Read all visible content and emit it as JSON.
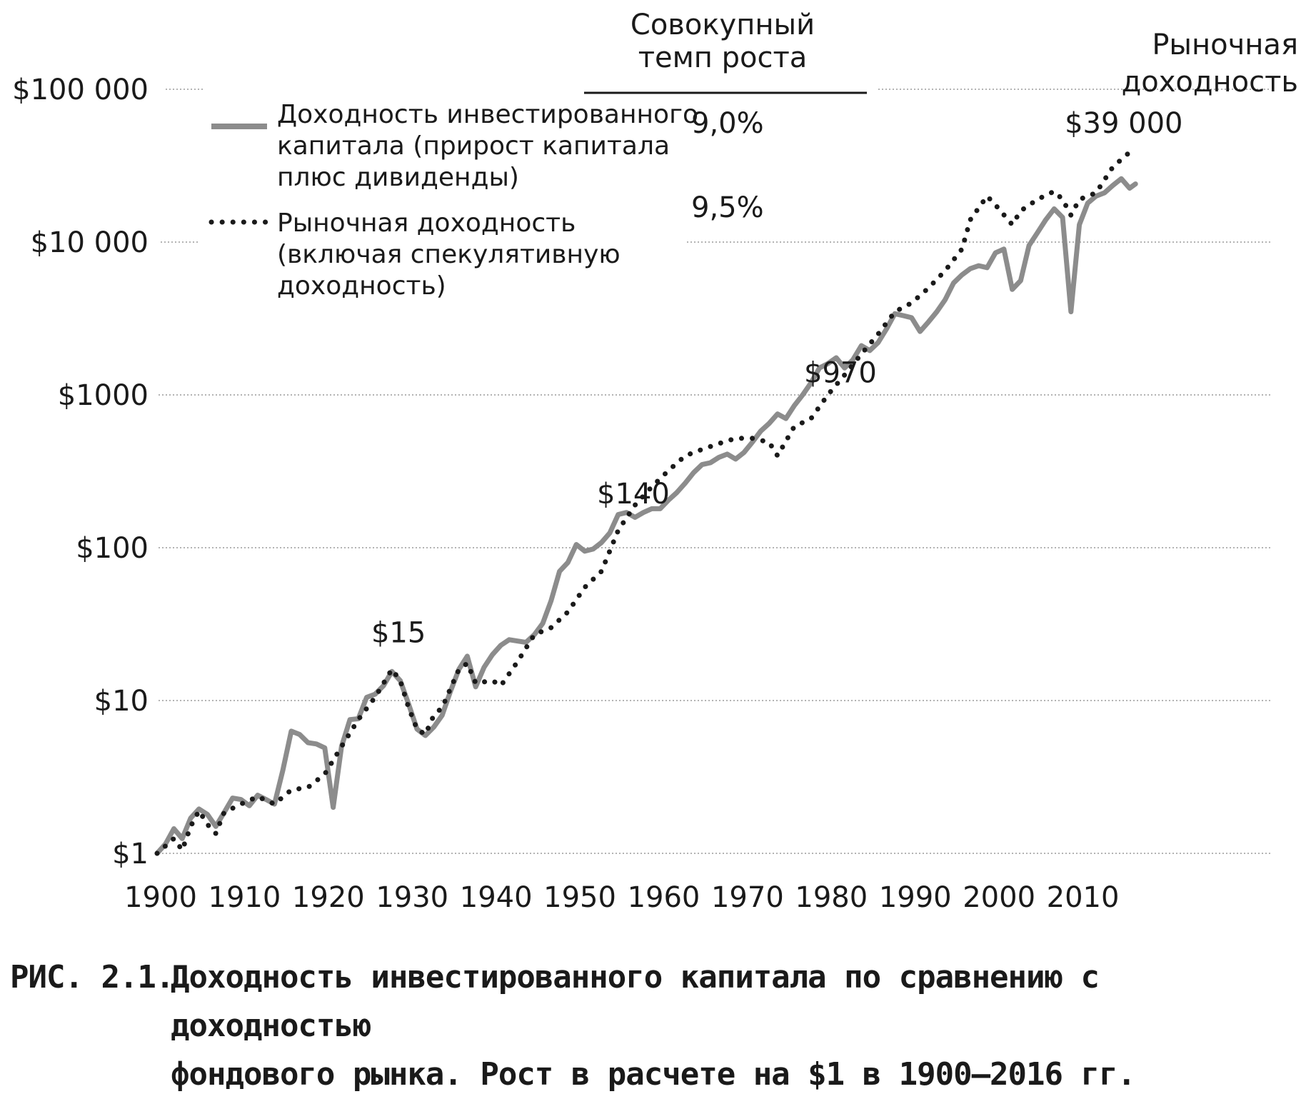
{
  "chart_data": {
    "type": "line",
    "title": "",
    "xlabel": "",
    "ylabel": "",
    "y_scale": "log",
    "ylim": [
      1,
      100000
    ],
    "xlim": [
      1900,
      2016
    ],
    "x_ticks": [
      "1900",
      "1910",
      "1920",
      "1930",
      "1940",
      "1950",
      "1960",
      "1970",
      "1980",
      "1990",
      "2000",
      "2010"
    ],
    "y_ticks": [
      {
        "value": 1,
        "label": "$1"
      },
      {
        "value": 10,
        "label": "$10"
      },
      {
        "value": 100,
        "label": "$100"
      },
      {
        "value": 1000,
        "label": "$1000"
      },
      {
        "value": 10000,
        "label": "$10 000"
      },
      {
        "value": 100000,
        "label": "$100 000"
      }
    ],
    "grid": "horizontal dotted",
    "legend_header": "Совокупный темп роста",
    "series": [
      {
        "name": "Доходность инвестированного капитала (прирост капитала плюс дивиденды)",
        "legend_lines": [
          "Доходность инвестированного",
          "капитала (прирост капитала",
          "плюс дивиденды)"
        ],
        "growth_rate": "9,0%",
        "style": "solid",
        "color": "#8c8c8c",
        "points": [
          [
            1900,
            1.0
          ],
          [
            1901,
            1.15
          ],
          [
            1902,
            1.45
          ],
          [
            1903,
            1.25
          ],
          [
            1904,
            1.7
          ],
          [
            1905,
            1.95
          ],
          [
            1906,
            1.8
          ],
          [
            1907,
            1.5
          ],
          [
            1908,
            1.85
          ],
          [
            1909,
            2.3
          ],
          [
            1910,
            2.25
          ],
          [
            1911,
            2.05
          ],
          [
            1912,
            2.4
          ],
          [
            1913,
            2.25
          ],
          [
            1914,
            2.1
          ],
          [
            1915,
            3.5
          ],
          [
            1916,
            6.3
          ],
          [
            1917,
            6.0
          ],
          [
            1918,
            5.3
          ],
          [
            1919,
            5.2
          ],
          [
            1920,
            4.9
          ],
          [
            1921,
            2.0
          ],
          [
            1922,
            5.0
          ],
          [
            1923,
            7.5
          ],
          [
            1924,
            7.6
          ],
          [
            1925,
            10.5
          ],
          [
            1926,
            11.0
          ],
          [
            1927,
            12.5
          ],
          [
            1928,
            15.5
          ],
          [
            1929,
            13.5
          ],
          [
            1930,
            9.5
          ],
          [
            1931,
            6.5
          ],
          [
            1932,
            5.9
          ],
          [
            1933,
            6.7
          ],
          [
            1934,
            8.0
          ],
          [
            1935,
            11.5
          ],
          [
            1936,
            16.0
          ],
          [
            1937,
            19.5
          ],
          [
            1938,
            12.3
          ],
          [
            1939,
            16.5
          ],
          [
            1940,
            20.0
          ],
          [
            1941,
            23.0
          ],
          [
            1942,
            25.0
          ],
          [
            1943,
            24.5
          ],
          [
            1944,
            24.0
          ],
          [
            1945,
            27.0
          ],
          [
            1946,
            32.0
          ],
          [
            1947,
            45.0
          ],
          [
            1948,
            70.0
          ],
          [
            1949,
            80.0
          ],
          [
            1950,
            105.0
          ],
          [
            1951,
            95.0
          ],
          [
            1952,
            98.0
          ],
          [
            1953,
            108.0
          ],
          [
            1954,
            125.0
          ],
          [
            1955,
            165.0
          ],
          [
            1956,
            170.0
          ],
          [
            1957,
            158.0
          ],
          [
            1958,
            170.0
          ],
          [
            1959,
            180.0
          ],
          [
            1960,
            180.0
          ],
          [
            1961,
            205.0
          ],
          [
            1962,
            230.0
          ],
          [
            1963,
            265.0
          ],
          [
            1964,
            310.0
          ],
          [
            1965,
            350.0
          ],
          [
            1966,
            360.0
          ],
          [
            1967,
            390.0
          ],
          [
            1968,
            410.0
          ],
          [
            1969,
            380.0
          ],
          [
            1970,
            420.0
          ],
          [
            1971,
            490.0
          ],
          [
            1972,
            580.0
          ],
          [
            1973,
            650.0
          ],
          [
            1974,
            750.0
          ],
          [
            1975,
            700.0
          ],
          [
            1976,
            850.0
          ],
          [
            1977,
            1000.0
          ],
          [
            1978,
            1200.0
          ],
          [
            1979,
            1500.0
          ],
          [
            1980,
            1600.0
          ],
          [
            1981,
            1750.0
          ],
          [
            1982,
            1500.0
          ],
          [
            1983,
            1700.0
          ],
          [
            1984,
            2100.0
          ],
          [
            1985,
            1950.0
          ],
          [
            1986,
            2200.0
          ],
          [
            1987,
            2700.0
          ],
          [
            1988,
            3400.0
          ],
          [
            1989,
            3300.0
          ],
          [
            1990,
            3200.0
          ],
          [
            1991,
            2600.0
          ],
          [
            1992,
            3000.0
          ],
          [
            1993,
            3500.0
          ],
          [
            1994,
            4200.0
          ],
          [
            1995,
            5400.0
          ],
          [
            1996,
            6100.0
          ],
          [
            1997,
            6700.0
          ],
          [
            1998,
            7000.0
          ],
          [
            1999,
            6800.0
          ],
          [
            2000,
            8500.0
          ],
          [
            2001,
            9000.0
          ],
          [
            2002,
            4900.0
          ],
          [
            2003,
            5600.0
          ],
          [
            2004,
            9500.0
          ],
          [
            2005,
            11500.0
          ],
          [
            2006,
            14000.0
          ],
          [
            2007,
            16500.0
          ],
          [
            2008,
            14500.0
          ],
          [
            2009,
            3500.0
          ],
          [
            2010,
            13000.0
          ],
          [
            2011,
            18000.0
          ],
          [
            2012,
            20000.0
          ],
          [
            2013,
            21000.0
          ],
          [
            2014,
            23500.0
          ],
          [
            2015,
            26000.0
          ],
          [
            2016,
            22500.0
          ],
          [
            2016.7,
            24000.0
          ]
        ]
      },
      {
        "name": "Рыночная доходность (включая спекулятивную доходность)",
        "legend_lines": [
          "Рыночная доходность",
          "(включая спекулятивную",
          "доходность)"
        ],
        "growth_rate": "9,5%",
        "style": "dotted",
        "color": "#1a1a1a",
        "points": [
          [
            1900,
            1.0
          ],
          [
            1902,
            1.25
          ],
          [
            1903,
            1.05
          ],
          [
            1904,
            1.5
          ],
          [
            1905,
            1.9
          ],
          [
            1906,
            1.55
          ],
          [
            1907,
            1.35
          ],
          [
            1908,
            1.85
          ],
          [
            1910,
            2.1
          ],
          [
            1912,
            2.35
          ],
          [
            1914,
            2.1
          ],
          [
            1916,
            2.6
          ],
          [
            1918,
            2.7
          ],
          [
            1920,
            3.3
          ],
          [
            1922,
            5.0
          ],
          [
            1924,
            7.5
          ],
          [
            1926,
            10.5
          ],
          [
            1928,
            16.0
          ],
          [
            1929,
            13.5
          ],
          [
            1930,
            9.0
          ],
          [
            1931,
            6.5
          ],
          [
            1932,
            6.0
          ],
          [
            1933,
            8.0
          ],
          [
            1934,
            9.0
          ],
          [
            1936,
            16.0
          ],
          [
            1937,
            17.5
          ],
          [
            1938,
            13.0
          ],
          [
            1940,
            13.5
          ],
          [
            1941,
            12.5
          ],
          [
            1943,
            18.0
          ],
          [
            1945,
            27.0
          ],
          [
            1947,
            30.0
          ],
          [
            1949,
            38.0
          ],
          [
            1951,
            55.0
          ],
          [
            1953,
            70.0
          ],
          [
            1955,
            130.0
          ],
          [
            1957,
            190.0
          ],
          [
            1959,
            250.0
          ],
          [
            1961,
            320.0
          ],
          [
            1963,
            400.0
          ],
          [
            1965,
            440.0
          ],
          [
            1967,
            480.0
          ],
          [
            1969,
            520.0
          ],
          [
            1971,
            520.0
          ],
          [
            1973,
            490.0
          ],
          [
            1974,
            400.0
          ],
          [
            1976,
            620.0
          ],
          [
            1978,
            700.0
          ],
          [
            1980,
            1000.0
          ],
          [
            1982,
            1350.0
          ],
          [
            1984,
            1850.0
          ],
          [
            1986,
            2500.0
          ],
          [
            1988,
            3500.0
          ],
          [
            1990,
            4000.0
          ],
          [
            1992,
            5000.0
          ],
          [
            1994,
            6500.0
          ],
          [
            1996,
            9000.0
          ],
          [
            1997,
            14000.0
          ],
          [
            1999,
            20000.0
          ],
          [
            2000,
            17500.0
          ],
          [
            2002,
            13000.0
          ],
          [
            2003,
            16000.0
          ],
          [
            2005,
            19000.0
          ],
          [
            2007,
            21500.0
          ],
          [
            2008,
            19000.0
          ],
          [
            2009,
            15000.0
          ],
          [
            2010,
            19000.0
          ],
          [
            2012,
            21000.0
          ],
          [
            2014,
            31000.0
          ],
          [
            2016.5,
            41000.0
          ]
        ]
      }
    ],
    "annotations": [
      {
        "label": "$15",
        "x": 1928.8,
        "y": 24
      },
      {
        "label": "$140",
        "x": 1956.8,
        "y": 195
      },
      {
        "label": "$970",
        "x": 1981.5,
        "y": 1210
      },
      {
        "label": "$39 000",
        "x": 2015.3,
        "y": 52000
      }
    ],
    "end_label": [
      "Рыночная",
      "доходность"
    ]
  },
  "caption": {
    "number": "РИС. 2.1.",
    "lines": [
      "Доходность инвестированного капитала по сравнению с доходностью",
      "фондового рынка. Рост в расчете на $1 в 1900–2016 гг."
    ]
  }
}
